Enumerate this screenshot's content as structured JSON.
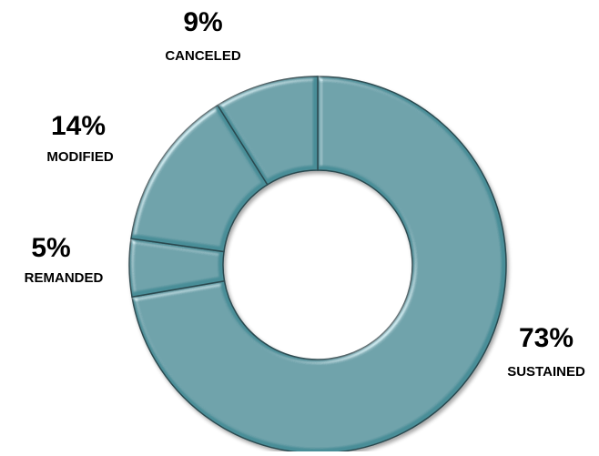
{
  "chart_data": {
    "type": "pie",
    "variant": "donut",
    "categories": [
      "SUSTAINED",
      "REMANDED",
      "MODIFIED",
      "CANCELED"
    ],
    "values": [
      73,
      5,
      14,
      9
    ],
    "value_labels": [
      "73%",
      "5%",
      "14%",
      "9%"
    ],
    "title": "",
    "legend": "none"
  },
  "colors": {
    "slice_fill": "#4a8e98",
    "slice_stroke": "#2a4a50",
    "highlight": "#9fdbe3",
    "shadow": "#0f2a30"
  }
}
